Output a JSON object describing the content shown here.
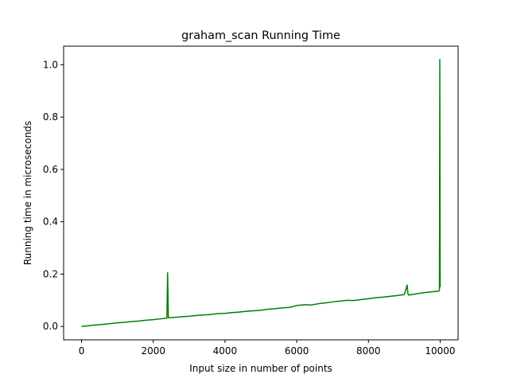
{
  "chart_data": {
    "type": "line",
    "title": "graham_scan Running Time",
    "xlabel": "Input size in number of points",
    "ylabel": "Running time in microseconds",
    "xlim": [
      -500,
      10500
    ],
    "ylim": [
      -0.051,
      1.071
    ],
    "x_ticks": [
      0,
      2000,
      4000,
      6000,
      8000,
      10000
    ],
    "y_ticks": [
      0.0,
      0.2,
      0.4,
      0.6,
      0.8,
      1.0
    ],
    "x_tick_labels": [
      "0",
      "2000",
      "4000",
      "6000",
      "8000",
      "10000"
    ],
    "y_tick_labels": [
      "0.0",
      "0.2",
      "0.4",
      "0.6",
      "0.8",
      "1.0"
    ],
    "grid": false,
    "legend": "none",
    "series": [
      {
        "color": "#008000",
        "x": [
          0,
          200,
          400,
          600,
          800,
          1000,
          1200,
          1400,
          1600,
          1800,
          2000,
          2200,
          2380,
          2400,
          2420,
          2440,
          2600,
          2800,
          3000,
          3200,
          3400,
          3600,
          3800,
          4000,
          4200,
          4400,
          4600,
          4800,
          5000,
          5200,
          5400,
          5600,
          5800,
          6000,
          6200,
          6400,
          6600,
          6800,
          7000,
          7200,
          7400,
          7600,
          7800,
          8000,
          8200,
          8400,
          8600,
          8800,
          9000,
          9080,
          9100,
          9120,
          9200,
          9400,
          9600,
          9800,
          9960,
          9980,
          9990,
          10000
        ],
        "y": [
          0.0,
          0.003,
          0.006,
          0.008,
          0.011,
          0.014,
          0.016,
          0.019,
          0.021,
          0.024,
          0.026,
          0.029,
          0.032,
          0.205,
          0.034,
          0.033,
          0.035,
          0.037,
          0.039,
          0.042,
          0.044,
          0.046,
          0.049,
          0.05,
          0.053,
          0.055,
          0.058,
          0.06,
          0.062,
          0.066,
          0.068,
          0.071,
          0.073,
          0.08,
          0.083,
          0.082,
          0.087,
          0.09,
          0.094,
          0.097,
          0.1,
          0.099,
          0.103,
          0.106,
          0.11,
          0.112,
          0.115,
          0.118,
          0.122,
          0.158,
          0.125,
          0.12,
          0.122,
          0.126,
          0.13,
          0.133,
          0.135,
          0.14,
          1.02,
          0.15
        ]
      }
    ]
  }
}
